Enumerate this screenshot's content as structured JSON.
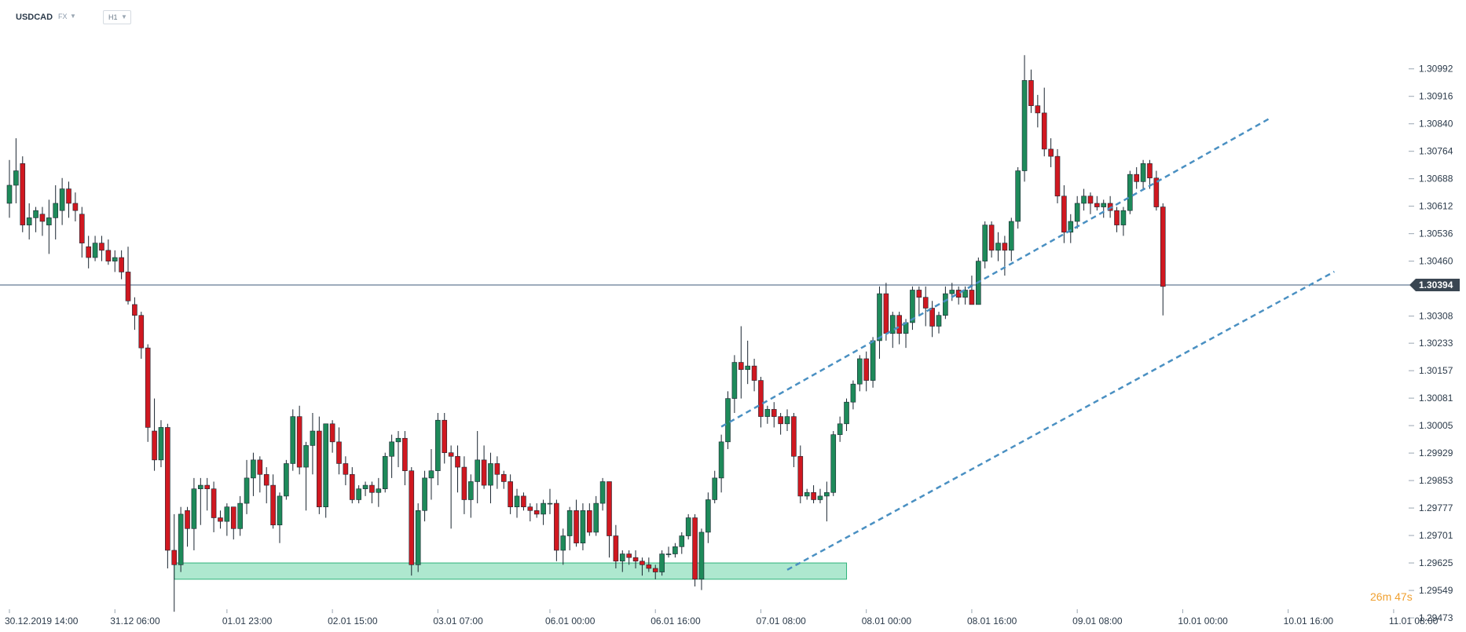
{
  "header": {
    "symbol": "USDCAD",
    "market": "FX",
    "timeframe": "H1"
  },
  "countdown": "26m 47s",
  "colors": {
    "up": "#1e8a5a",
    "down": "#d01820",
    "channel": "#4a90c2",
    "support_zone_fill": "#aee8cf",
    "support_zone_border": "#2fb37a",
    "price_line": "#3e5a78",
    "price_tag_bg": "#3a4652",
    "countdown": "#f0a030"
  },
  "chart_data": {
    "type": "candlestick",
    "symbol": "USDCAD",
    "timeframe": "H1",
    "current_price": "1.30394",
    "ylim": [
      1.2951,
      1.311
    ],
    "y_ticks": [
      "1.30992",
      "1.30916",
      "1.30840",
      "1.30764",
      "1.30688",
      "1.30612",
      "1.30536",
      "1.30460",
      "1.30308",
      "1.30233",
      "1.30157",
      "1.30081",
      "1.30005",
      "1.29929",
      "1.29853",
      "1.29777",
      "1.29701",
      "1.29625",
      "1.29549",
      "1.29473"
    ],
    "x_ticks": [
      {
        "label": "30.12.2019  14:00",
        "index": 0
      },
      {
        "label": "31.12  06:00",
        "index": 16
      },
      {
        "label": "01.01  23:00",
        "index": 33
      },
      {
        "label": "02.01  15:00",
        "index": 49
      },
      {
        "label": "03.01  07:00",
        "index": 65
      },
      {
        "label": "06.01  00:00",
        "index": 82
      },
      {
        "label": "06.01  16:00",
        "index": 98
      },
      {
        "label": "07.01  08:00",
        "index": 114
      },
      {
        "label": "08.01  00:00",
        "index": 130
      },
      {
        "label": "08.01  16:00",
        "index": 146
      },
      {
        "label": "09.01  08:00",
        "index": 162
      },
      {
        "label": "10.01  00:00",
        "index": 178
      },
      {
        "label": "10.01  16:00",
        "index": 194
      },
      {
        "label": "11.01  08:00",
        "index": 210
      }
    ],
    "candles": [
      [
        1.3062,
        1.3074,
        1.3058,
        1.3067
      ],
      [
        1.3067,
        1.308,
        1.3062,
        1.3071
      ],
      [
        1.3073,
        1.3075,
        1.3054,
        1.3056
      ],
      [
        1.3056,
        1.3062,
        1.3052,
        1.3058
      ],
      [
        1.3058,
        1.3061,
        1.3054,
        1.306
      ],
      [
        1.3059,
        1.3061,
        1.3053,
        1.3057
      ],
      [
        1.3056,
        1.3063,
        1.3048,
        1.3058
      ],
      [
        1.3058,
        1.3067,
        1.3052,
        1.3062
      ],
      [
        1.306,
        1.3069,
        1.3056,
        1.3066
      ],
      [
        1.3066,
        1.3068,
        1.3058,
        1.3062
      ],
      [
        1.3062,
        1.3065,
        1.3057,
        1.306
      ],
      [
        1.3059,
        1.3061,
        1.3047,
        1.3051
      ],
      [
        1.305,
        1.3053,
        1.3044,
        1.3047
      ],
      [
        1.3047,
        1.3053,
        1.3046,
        1.3051
      ],
      [
        1.3051,
        1.3053,
        1.3046,
        1.3049
      ],
      [
        1.3049,
        1.3052,
        1.3045,
        1.3046
      ],
      [
        1.3046,
        1.3049,
        1.3043,
        1.3047
      ],
      [
        1.3047,
        1.3049,
        1.3041,
        1.3043
      ],
      [
        1.3043,
        1.305,
        1.3034,
        1.3035
      ],
      [
        1.3034,
        1.3036,
        1.3027,
        1.3031
      ],
      [
        1.3031,
        1.3032,
        1.3019,
        1.3022
      ],
      [
        1.3022,
        1.3023,
        1.2996,
        1.3
      ],
      [
        1.2999,
        1.3008,
        1.2988,
        1.2991
      ],
      [
        1.2991,
        1.3002,
        1.2989,
        1.3
      ],
      [
        1.3,
        1.3001,
        1.2961,
        1.2966
      ],
      [
        1.2966,
        1.2976,
        1.2949,
        1.2962
      ],
      [
        1.2962,
        1.2978,
        1.296,
        1.2976
      ],
      [
        1.2977,
        1.2978,
        1.2967,
        1.2972
      ],
      [
        1.2972,
        1.2986,
        1.2966,
        1.2983
      ],
      [
        1.2983,
        1.2986,
        1.2973,
        1.2984
      ],
      [
        1.2984,
        1.2986,
        1.2977,
        1.2983
      ],
      [
        1.2983,
        1.2985,
        1.2971,
        1.2975
      ],
      [
        1.2975,
        1.2977,
        1.2972,
        1.2974
      ],
      [
        1.2974,
        1.2979,
        1.297,
        1.2978
      ],
      [
        1.2978,
        1.2978,
        1.2969,
        1.2972
      ],
      [
        1.2972,
        1.2981,
        1.297,
        1.2979
      ],
      [
        1.2979,
        1.2991,
        1.2976,
        1.2986
      ],
      [
        1.2986,
        1.2993,
        1.2981,
        1.2991
      ],
      [
        1.2991,
        1.2992,
        1.2982,
        1.2987
      ],
      [
        1.2987,
        1.2989,
        1.2979,
        1.2984
      ],
      [
        1.2984,
        1.2987,
        1.2972,
        1.2973
      ],
      [
        1.2973,
        1.2982,
        1.2968,
        1.2981
      ],
      [
        1.2981,
        1.2991,
        1.298,
        1.299
      ],
      [
        1.299,
        1.3005,
        1.2988,
        1.3003
      ],
      [
        1.3003,
        1.3006,
        1.2987,
        1.2989
      ],
      [
        1.2989,
        1.2996,
        1.2977,
        1.2995
      ],
      [
        1.2995,
        1.3004,
        1.2987,
        1.2999
      ],
      [
        1.2999,
        1.3003,
        1.2976,
        1.2978
      ],
      [
        1.2978,
        1.3001,
        1.2975,
        1.3001
      ],
      [
        1.3001,
        1.3002,
        1.2993,
        1.2996
      ],
      [
        1.2996,
        1.3,
        1.2987,
        1.299
      ],
      [
        1.299,
        1.2992,
        1.2984,
        1.2987
      ],
      [
        1.2987,
        1.2989,
        1.2979,
        1.298
      ],
      [
        1.298,
        1.2984,
        1.2979,
        1.2983
      ],
      [
        1.2983,
        1.2985,
        1.2981,
        1.2984
      ],
      [
        1.2984,
        1.2985,
        1.2979,
        1.2982
      ],
      [
        1.2982,
        1.2986,
        1.2978,
        1.2983
      ],
      [
        1.2983,
        1.2993,
        1.2982,
        1.2992
      ],
      [
        1.2992,
        1.2998,
        1.2986,
        1.2996
      ],
      [
        1.2996,
        1.2999,
        1.2989,
        1.2997
      ],
      [
        1.2997,
        1.2999,
        1.2984,
        1.2988
      ],
      [
        1.2988,
        1.2989,
        1.2959,
        1.2962
      ],
      [
        1.2962,
        1.2979,
        1.296,
        1.2977
      ],
      [
        1.2977,
        1.2988,
        1.2974,
        1.2986
      ],
      [
        1.2986,
        1.2994,
        1.298,
        1.2988
      ],
      [
        1.2988,
        1.3004,
        1.2984,
        1.3002
      ],
      [
        1.3002,
        1.3004,
        1.299,
        1.2993
      ],
      [
        1.2993,
        1.2995,
        1.2972,
        1.2992
      ],
      [
        1.2992,
        1.2995,
        1.2982,
        1.2989
      ],
      [
        1.2989,
        1.2992,
        1.2976,
        1.298
      ],
      [
        1.298,
        1.2987,
        1.2975,
        1.2985
      ],
      [
        1.2985,
        1.2999,
        1.2979,
        1.2991
      ],
      [
        1.2991,
        1.2995,
        1.2983,
        1.2984
      ],
      [
        1.2984,
        1.2993,
        1.2979,
        1.299
      ],
      [
        1.299,
        1.2992,
        1.2983,
        1.2987
      ],
      [
        1.2987,
        1.2988,
        1.2983,
        1.2985
      ],
      [
        1.2985,
        1.2987,
        1.2976,
        1.2978
      ],
      [
        1.2978,
        1.2983,
        1.2975,
        1.2981
      ],
      [
        1.2981,
        1.2982,
        1.2977,
        1.2978
      ],
      [
        1.2978,
        1.2979,
        1.2974,
        1.2977
      ],
      [
        1.2977,
        1.2979,
        1.2975,
        1.2976
      ],
      [
        1.2976,
        1.298,
        1.2973,
        1.2979
      ],
      [
        1.2979,
        1.2983,
        1.2976,
        1.2979
      ],
      [
        1.2979,
        1.298,
        1.2963,
        1.2966
      ],
      [
        1.2966,
        1.2972,
        1.2962,
        1.297
      ],
      [
        1.297,
        1.2978,
        1.2966,
        1.2977
      ],
      [
        1.2977,
        1.298,
        1.2967,
        1.2968
      ],
      [
        1.2968,
        1.2979,
        1.2966,
        1.2977
      ],
      [
        1.2977,
        1.2979,
        1.297,
        1.2971
      ],
      [
        1.2971,
        1.2981,
        1.297,
        1.2979
      ],
      [
        1.2979,
        1.2986,
        1.2977,
        1.2985
      ],
      [
        1.2985,
        1.2985,
        1.2964,
        1.297
      ],
      [
        1.297,
        1.2973,
        1.2961,
        1.2963
      ],
      [
        1.2963,
        1.2966,
        1.296,
        1.2965
      ],
      [
        1.2965,
        1.2966,
        1.2962,
        1.2964
      ],
      [
        1.2964,
        1.2966,
        1.2961,
        1.2963
      ],
      [
        1.2963,
        1.2964,
        1.2959,
        1.2962
      ],
      [
        1.2962,
        1.2964,
        1.296,
        1.2961
      ],
      [
        1.2961,
        1.2962,
        1.2958,
        1.296
      ],
      [
        1.296,
        1.2966,
        1.2959,
        1.2965
      ],
      [
        1.2965,
        1.2967,
        1.2964,
        1.2965
      ],
      [
        1.2965,
        1.2968,
        1.2964,
        1.2967
      ],
      [
        1.2967,
        1.2971,
        1.2965,
        1.297
      ],
      [
        1.297,
        1.2976,
        1.2969,
        1.2975
      ],
      [
        1.2975,
        1.2976,
        1.2956,
        1.2958
      ],
      [
        1.2958,
        1.2972,
        1.2955,
        1.2971
      ],
      [
        1.2971,
        1.2982,
        1.2968,
        1.298
      ],
      [
        1.298,
        1.2988,
        1.2979,
        1.2986
      ],
      [
        1.2986,
        1.2998,
        1.2982,
        1.2996
      ],
      [
        1.2996,
        1.301,
        1.2994,
        1.3008
      ],
      [
        1.3008,
        1.302,
        1.3004,
        1.3018
      ],
      [
        1.3018,
        1.3028,
        1.3008,
        1.3016
      ],
      [
        1.3016,
        1.3024,
        1.3012,
        1.3017
      ],
      [
        1.3017,
        1.3019,
        1.301,
        1.3013
      ],
      [
        1.3013,
        1.3014,
        1.3,
        1.3003
      ],
      [
        1.3003,
        1.3006,
        1.3001,
        1.3005
      ],
      [
        1.3005,
        1.3007,
        1.3,
        1.3003
      ],
      [
        1.3003,
        1.3004,
        1.2998,
        1.3001
      ],
      [
        1.3001,
        1.3005,
        1.2999,
        1.3003
      ],
      [
        1.3003,
        1.3004,
        1.2989,
        1.2992
      ],
      [
        1.2992,
        1.2995,
        1.2979,
        1.2981
      ],
      [
        1.2981,
        1.2983,
        1.298,
        1.2982
      ],
      [
        1.2982,
        1.2984,
        1.2979,
        1.298
      ],
      [
        1.298,
        1.2983,
        1.2979,
        1.2981
      ],
      [
        1.2981,
        1.2985,
        1.2974,
        1.2982
      ],
      [
        1.2982,
        1.2999,
        1.2981,
        1.2998
      ],
      [
        1.2998,
        1.3003,
        1.2996,
        1.3001
      ],
      [
        1.3001,
        1.3008,
        1.2999,
        1.3007
      ],
      [
        1.3007,
        1.3013,
        1.3005,
        1.3012
      ],
      [
        1.3012,
        1.302,
        1.301,
        1.3019
      ],
      [
        1.3019,
        1.3021,
        1.301,
        1.3013
      ],
      [
        1.3013,
        1.3025,
        1.3011,
        1.3024
      ],
      [
        1.3024,
        1.3039,
        1.3019,
        1.3037
      ],
      [
        1.3037,
        1.304,
        1.3024,
        1.3026
      ],
      [
        1.3026,
        1.3032,
        1.3022,
        1.3031
      ],
      [
        1.3031,
        1.3032,
        1.3023,
        1.3026
      ],
      [
        1.3026,
        1.303,
        1.3022,
        1.3029
      ],
      [
        1.3029,
        1.3039,
        1.3027,
        1.3038
      ],
      [
        1.3038,
        1.3039,
        1.3031,
        1.3036
      ],
      [
        1.3036,
        1.3039,
        1.3028,
        1.3033
      ],
      [
        1.3033,
        1.3035,
        1.3025,
        1.3028
      ],
      [
        1.3028,
        1.3032,
        1.3026,
        1.3031
      ],
      [
        1.3031,
        1.3039,
        1.303,
        1.3037
      ],
      [
        1.3037,
        1.304,
        1.3035,
        1.3038
      ],
      [
        1.3038,
        1.3039,
        1.3034,
        1.3036
      ],
      [
        1.3036,
        1.3039,
        1.3034,
        1.3038
      ],
      [
        1.3038,
        1.3042,
        1.3034,
        1.3034
      ],
      [
        1.3034,
        1.3047,
        1.3034,
        1.3046
      ],
      [
        1.3046,
        1.3057,
        1.3044,
        1.3056
      ],
      [
        1.3056,
        1.3057,
        1.3047,
        1.3049
      ],
      [
        1.3049,
        1.3054,
        1.3046,
        1.3051
      ],
      [
        1.3051,
        1.3053,
        1.3042,
        1.3049
      ],
      [
        1.3049,
        1.3058,
        1.3046,
        1.3057
      ],
      [
        1.3057,
        1.3072,
        1.3055,
        1.3071
      ],
      [
        1.3071,
        1.3103,
        1.3068,
        1.3096
      ],
      [
        1.3096,
        1.3099,
        1.3087,
        1.3089
      ],
      [
        1.3089,
        1.3092,
        1.3083,
        1.3087
      ],
      [
        1.3087,
        1.3094,
        1.3075,
        1.3077
      ],
      [
        1.3077,
        1.308,
        1.3072,
        1.3075
      ],
      [
        1.3075,
        1.3077,
        1.3062,
        1.3064
      ],
      [
        1.3064,
        1.3067,
        1.3051,
        1.3054
      ],
      [
        1.3054,
        1.3059,
        1.3051,
        1.3057
      ],
      [
        1.3057,
        1.3064,
        1.3055,
        1.3062
      ],
      [
        1.3062,
        1.3066,
        1.306,
        1.3064
      ],
      [
        1.3064,
        1.3065,
        1.3059,
        1.3062
      ],
      [
        1.3062,
        1.3064,
        1.306,
        1.3061
      ],
      [
        1.3061,
        1.3063,
        1.3058,
        1.3062
      ],
      [
        1.3062,
        1.3064,
        1.3058,
        1.306
      ],
      [
        1.306,
        1.3061,
        1.3054,
        1.3056
      ],
      [
        1.3056,
        1.3061,
        1.3053,
        1.306
      ],
      [
        1.306,
        1.3071,
        1.3059,
        1.307
      ],
      [
        1.307,
        1.3072,
        1.3066,
        1.3068
      ],
      [
        1.3068,
        1.3074,
        1.3066,
        1.3073
      ],
      [
        1.3073,
        1.3074,
        1.3066,
        1.3069
      ],
      [
        1.3069,
        1.3071,
        1.306,
        1.3061
      ],
      [
        1.3061,
        1.3062,
        1.3031,
        1.3039
      ]
    ],
    "channel": {
      "upper": [
        [
          108,
          1.30002
        ],
        [
          191,
          1.30853
        ]
      ],
      "lower": [
        [
          118,
          1.29606
        ],
        [
          201,
          1.30431
        ]
      ]
    },
    "support_zone": {
      "x_start": 25,
      "x_end": 127,
      "y_low": 1.2958,
      "y_high": 1.29625
    },
    "grid": false,
    "title": "",
    "xlabel": "",
    "ylabel": ""
  }
}
